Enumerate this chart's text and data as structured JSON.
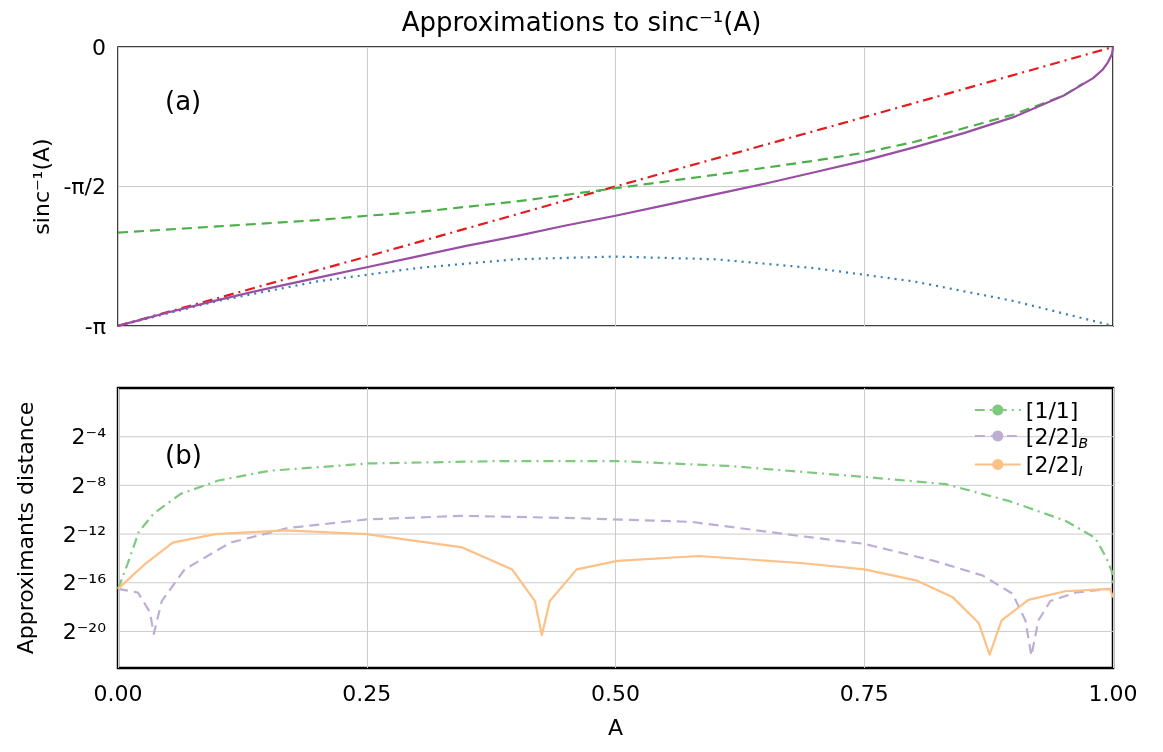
{
  "chart_data": [
    {
      "type": "line",
      "title": "Approximations to sinc⁻¹(A)",
      "ylabel": "sinc⁻¹(A)",
      "annotations": [
        "(a)"
      ],
      "xlim": [
        0,
        1
      ],
      "xticks": [
        0,
        0.25,
        0.5,
        0.75,
        1
      ],
      "ylim": [
        -3.1416,
        0
      ],
      "yticks": [
        {
          "value": -3.1416,
          "label": "-π"
        },
        {
          "value": -1.5708,
          "label": "-π/2"
        },
        {
          "value": 0,
          "label": "0"
        }
      ],
      "grid": true,
      "legend": false,
      "tick_labels": "y",
      "marker": "none",
      "series": [
        {
          "color": "#377eb8",
          "line_style": "dotted",
          "x": [
            0,
            0.1,
            0.2,
            0.3,
            0.4,
            0.5,
            0.6,
            0.7,
            0.8,
            0.9,
            1
          ],
          "values": [
            -3.14,
            -2.86,
            -2.64,
            -2.49,
            -2.39,
            -2.36,
            -2.39,
            -2.49,
            -2.64,
            -2.86,
            -3.14
          ]
        },
        {
          "color": "#e41a1c",
          "line_style": "dashdot",
          "x": [
            0,
            0.25,
            0.5,
            0.75,
            1
          ],
          "values": [
            -3.14,
            -2.36,
            -1.57,
            -0.79,
            0
          ]
        },
        {
          "color": "#4daf4a",
          "line_style": "dashed",
          "x": [
            0,
            0.1,
            0.2,
            0.25,
            0.3,
            0.4,
            0.5,
            0.6,
            0.7,
            0.75,
            0.8,
            0.9,
            0.95,
            0.97
          ],
          "values": [
            -2.09,
            -2.02,
            -1.95,
            -1.9,
            -1.86,
            -1.74,
            -1.59,
            -1.44,
            -1.28,
            -1.19,
            -1.07,
            -0.76,
            -0.55,
            -0.41
          ]
        },
        {
          "color": "#984ea3",
          "line_style": "solid",
          "x": [
            0,
            0.05,
            0.1,
            0.15,
            0.2,
            0.25,
            0.3,
            0.35,
            0.4,
            0.45,
            0.5,
            0.55,
            0.6,
            0.65,
            0.7,
            0.75,
            0.8,
            0.85,
            0.9,
            0.95,
            0.98,
            0.99,
            0.995,
            0.999,
            1
          ],
          "values": [
            -3.14,
            -2.99,
            -2.85,
            -2.72,
            -2.6,
            -2.48,
            -2.36,
            -2.24,
            -2.13,
            -2.01,
            -1.9,
            -1.78,
            -1.66,
            -1.54,
            -1.41,
            -1.28,
            -1.13,
            -0.97,
            -0.79,
            -0.55,
            -0.35,
            -0.25,
            -0.17,
            -0.08,
            0
          ]
        }
      ]
    },
    {
      "type": "line",
      "xlabel": "A",
      "ylabel": "Approximants distance",
      "annotations": [
        "(b)"
      ],
      "xlim": [
        0,
        1
      ],
      "xticks": [
        {
          "value": 0,
          "label": "0.00"
        },
        {
          "value": 0.25,
          "label": "0.25"
        },
        {
          "value": 0.5,
          "label": "0.50"
        },
        {
          "value": 0.75,
          "label": "0.75"
        },
        {
          "value": 1,
          "label": "1.00"
        }
      ],
      "ylim": [
        1.19e-07,
        1
      ],
      "yticks": [
        {
          "value": 0.0625,
          "label": "2⁻⁴"
        },
        {
          "value": 0.00390625,
          "label": "2⁻⁸"
        },
        {
          "value": 0.000244140625,
          "label": "2⁻¹²"
        },
        {
          "value": 1.52587890625e-05,
          "label": "2⁻¹⁶"
        },
        {
          "value": 9.5367431640625e-07,
          "label": "2⁻²⁰"
        }
      ],
      "log": "y",
      "grid": true,
      "legend": "top right",
      "marker": "none",
      "series": [
        {
          "name": "[1/1]",
          "color": "#7fc97f",
          "line_style": "dashdot",
          "x": [
            0,
            0.009,
            0.021,
            0.036,
            0.063,
            0.101,
            0.152,
            0.252,
            0.384,
            0.502,
            0.614,
            0.75,
            0.832,
            0.896,
            0.952,
            0.982,
            0.993,
            0.999,
            1
          ],
          "values": [
            1.079e-05,
            4.03e-05,
            0.00028,
            0.000793,
            0.00241,
            0.00516,
            0.00897,
            0.0136,
            0.0156,
            0.0156,
            0.0118,
            0.00634,
            0.00419,
            0.00159,
            0.000523,
            0.000198,
            6.54e-05,
            2.85e-05,
            1.24e-05
          ]
        },
        {
          "name": "[2/2]$_{B}$",
          "color": "#beaed4",
          "line_style": "dashed",
          "x": [
            0,
            0.02,
            0.032,
            0.036,
            0.044,
            0.067,
            0.113,
            0.171,
            0.25,
            0.345,
            0.464,
            0.577,
            0.689,
            0.75,
            0.82,
            0.869,
            0.899,
            0.912,
            0.918,
            0.925,
            0.937,
            0.963,
            0.997
          ],
          "values": [
            1.079e-05,
            8.76e-06,
            2.89e-06,
            8.31e-07,
            5.39e-06,
            3.27e-05,
            0.00015,
            0.000345,
            0.000561,
            0.00069,
            0.000602,
            0.000488,
            0.000213,
            0.00014,
            5.32e-05,
            2.31e-05,
            8.18e-06,
            1.78e-06,
            2.38e-07,
            1.78e-06,
            5.39e-06,
            8.76e-06,
            1.079e-05
          ]
        },
        {
          "name": "[2/2]$_{I}$",
          "color": "#fdc086",
          "line_style": "solid",
          "x": [
            0,
            0.028,
            0.055,
            0.098,
            0.168,
            0.25,
            0.346,
            0.396,
            0.419,
            0.426,
            0.434,
            0.461,
            0.502,
            0.584,
            0.689,
            0.75,
            0.802,
            0.839,
            0.865,
            0.876,
            0.888,
            0.915,
            0.952,
            0.997,
            1
          ],
          "values": [
            1.079e-05,
            4.63e-05,
            0.00015,
            0.000244,
            0.000301,
            0.000244,
            0.000114,
            3.27e-05,
            5.39e-06,
            7.74e-07,
            5.39e-06,
            3.27e-05,
            5.32e-05,
            7.01e-05,
            4.63e-05,
            3.27e-05,
            1.75e-05,
            6.65e-06,
            1.55e-06,
            2.56e-07,
            1.78e-06,
            5.78e-06,
            9.4e-06,
            1.079e-05,
            6.65e-06
          ]
        }
      ]
    }
  ]
}
